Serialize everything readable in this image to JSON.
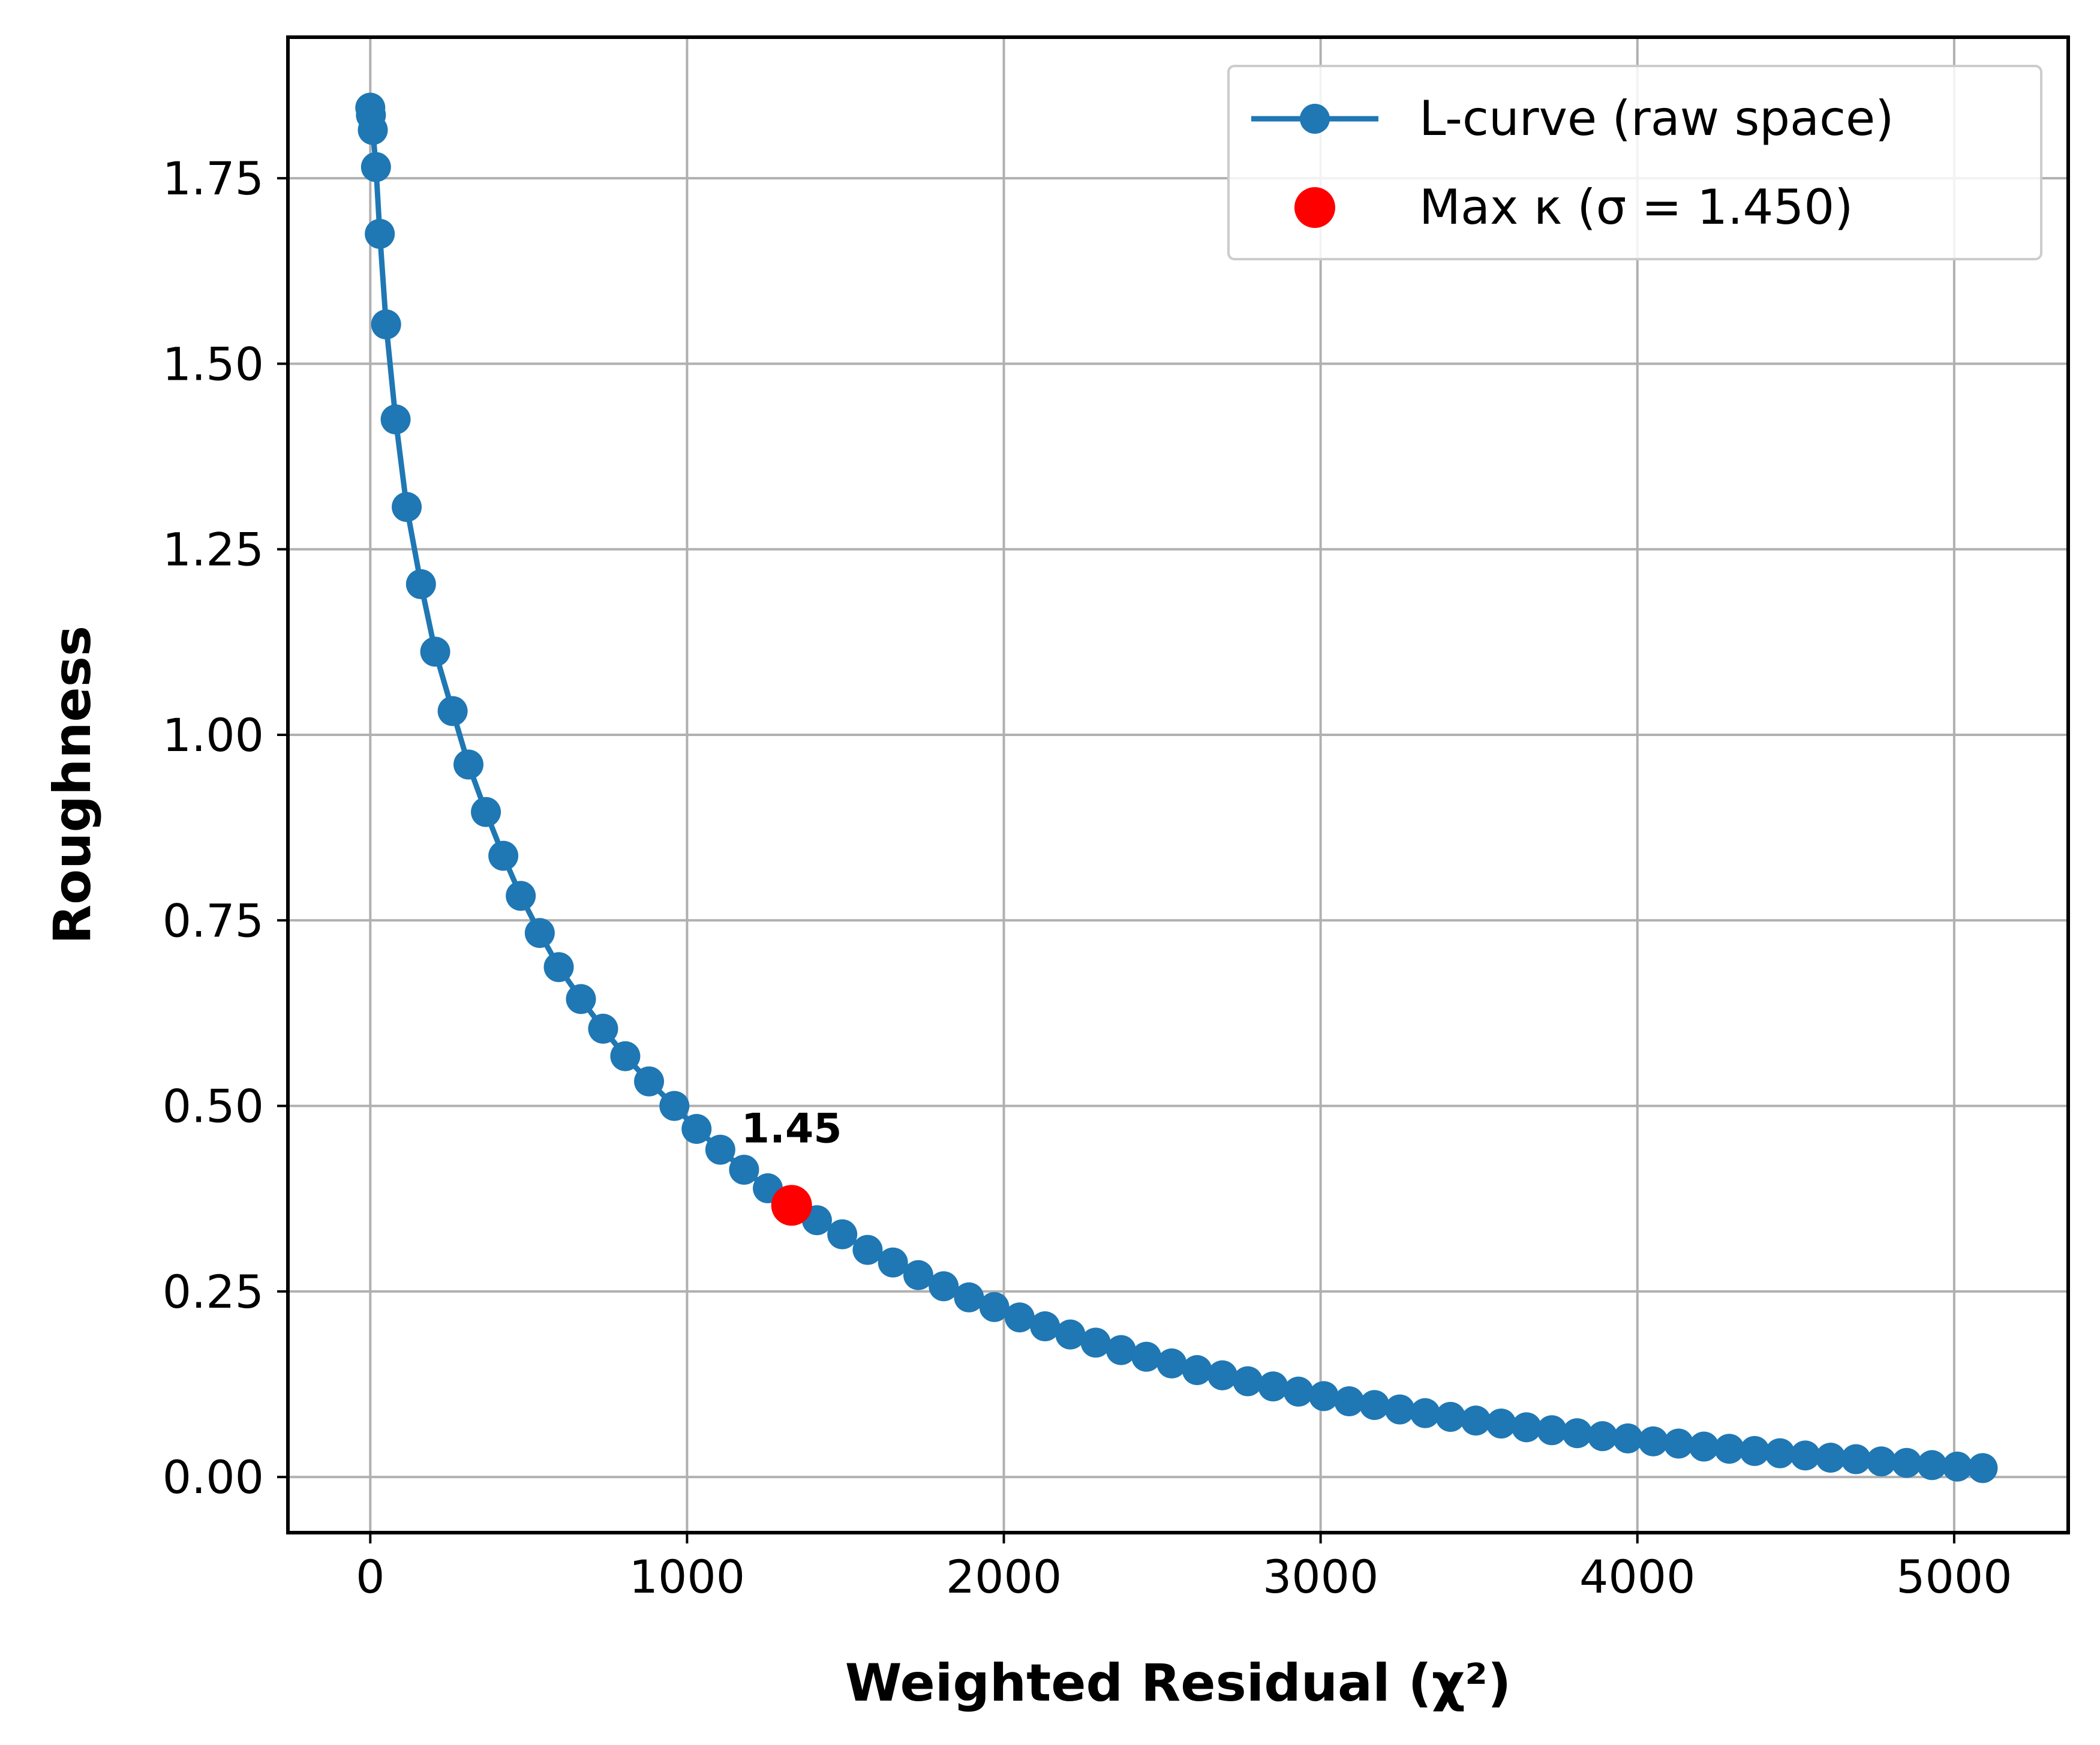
{
  "chart_data": {
    "type": "line",
    "title": "",
    "xlabel": "Weighted Residual (χ²)",
    "ylabel": "Roughness",
    "xlim": [
      -260,
      5360
    ],
    "ylim": [
      -0.075,
      1.94
    ],
    "xticks": [
      0,
      1000,
      2000,
      3000,
      4000,
      5000
    ],
    "xtick_labels": [
      "0",
      "1000",
      "2000",
      "3000",
      "4000",
      "5000"
    ],
    "yticks": [
      0.0,
      0.25,
      0.5,
      0.75,
      1.0,
      1.25,
      1.5,
      1.75
    ],
    "ytick_labels": [
      "0.00",
      "0.25",
      "0.50",
      "0.75",
      "1.00",
      "1.25",
      "1.50",
      "1.75"
    ],
    "grid": true,
    "legend_position": "top-right",
    "series": [
      {
        "name": "L-curve (raw space)",
        "color": "#1f77b4",
        "marker": "circle",
        "x": [
          0,
          2,
          8,
          18,
          30,
          50,
          80,
          115,
          160,
          205,
          260,
          310,
          365,
          420,
          475,
          535,
          595,
          665,
          735,
          805,
          880,
          960,
          1030,
          1105,
          1180,
          1255,
          1330,
          1410,
          1490,
          1570,
          1650,
          1730,
          1810,
          1890,
          1970,
          2050,
          2130,
          2210,
          2290,
          2370,
          2450,
          2530,
          2610,
          2690,
          2770,
          2850,
          2930,
          3010,
          3090,
          3170,
          3250,
          3330,
          3410,
          3490,
          3570,
          3650,
          3730,
          3810,
          3890,
          3970,
          4050,
          4130,
          4210,
          4290,
          4370,
          4450,
          4530,
          4610,
          4690,
          4770,
          4850,
          4930,
          5010,
          5090
        ],
        "y": [
          1.845,
          1.835,
          1.815,
          1.765,
          1.675,
          1.553,
          1.425,
          1.307,
          1.203,
          1.112,
          1.032,
          0.96,
          0.896,
          0.837,
          0.783,
          0.733,
          0.687,
          0.644,
          0.604,
          0.567,
          0.533,
          0.5,
          0.469,
          0.441,
          0.414,
          0.389,
          0.366,
          0.346,
          0.327,
          0.306,
          0.289,
          0.272,
          0.257,
          0.242,
          0.229,
          0.215,
          0.203,
          0.192,
          0.181,
          0.171,
          0.162,
          0.153,
          0.144,
          0.137,
          0.129,
          0.122,
          0.115,
          0.109,
          0.102,
          0.097,
          0.091,
          0.086,
          0.081,
          0.076,
          0.072,
          0.067,
          0.063,
          0.059,
          0.055,
          0.052,
          0.048,
          0.045,
          0.041,
          0.038,
          0.035,
          0.032,
          0.029,
          0.026,
          0.024,
          0.021,
          0.019,
          0.016,
          0.014,
          0.012
        ]
      }
    ],
    "highlight": {
      "name": "Max κ (σ = 1.450)",
      "color": "#ff0000",
      "x": 1330,
      "y": 0.366,
      "annotation": "1.45"
    }
  }
}
